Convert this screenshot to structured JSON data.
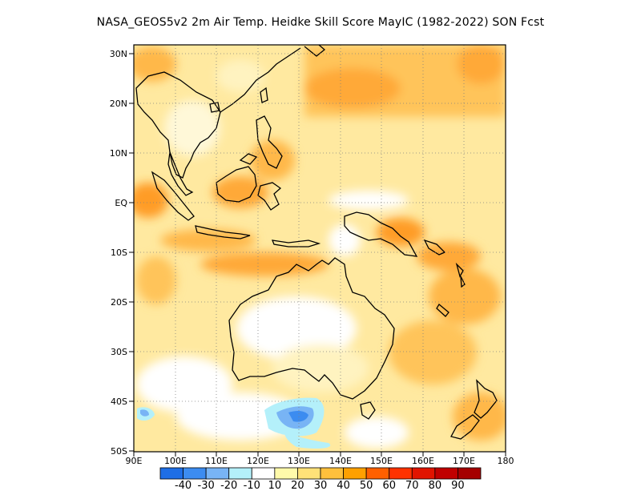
{
  "title": "NASA_GEOS5v2  2m Air Temp. Heidke Skill Score MayIC (1982-2022) SON Fcst",
  "lat_labels": [
    "30N",
    "20N",
    "10N",
    "EQ",
    "10S",
    "20S",
    "30S",
    "40S",
    "50S"
  ],
  "lon_labels": [
    "90E",
    "100E",
    "110E",
    "120E",
    "130E",
    "140E",
    "150E",
    "160E",
    "170E",
    "180"
  ],
  "colorbar": {
    "colors": [
      "#1e6ee6",
      "#3c8cf0",
      "#78b4f5",
      "#b4f0fa",
      "#ffffff",
      "#fffaaa",
      "#ffe178",
      "#ffc03c",
      "#ffa000",
      "#ff6000",
      "#ff3200",
      "#e11400",
      "#c00000",
      "#a50000"
    ],
    "labels": [
      "-40",
      "-30",
      "-20",
      "-10",
      "10",
      "20",
      "30",
      "40",
      "50",
      "60",
      "70",
      "80",
      "90"
    ]
  }
}
